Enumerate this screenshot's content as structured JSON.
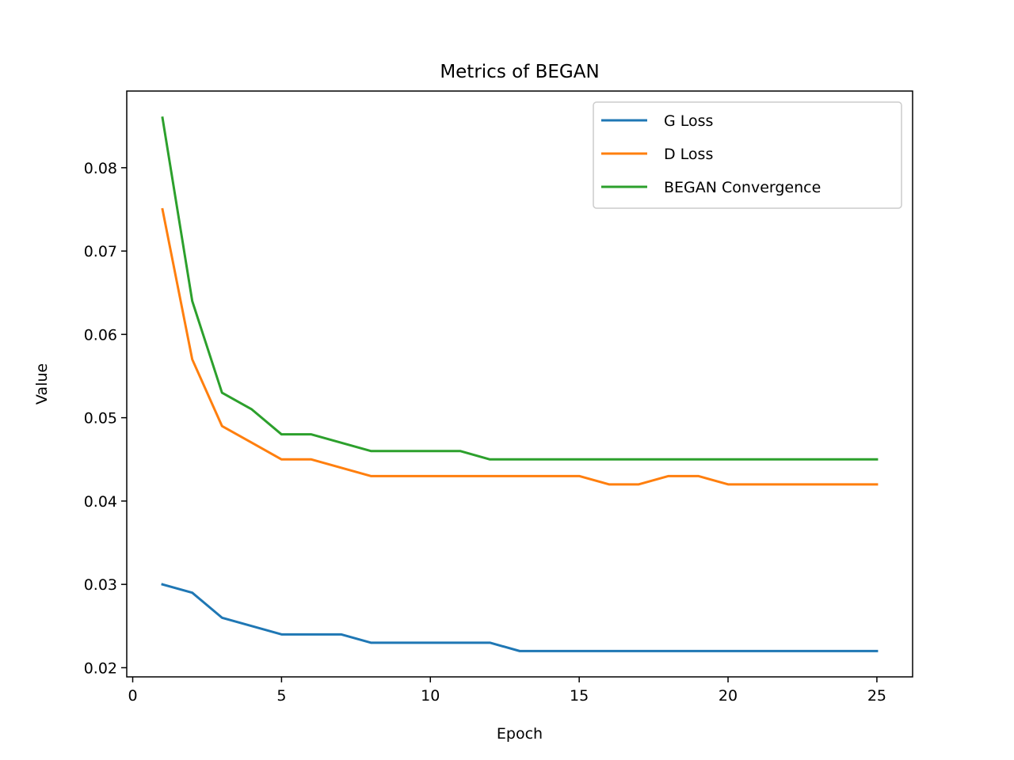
{
  "chart_data": {
    "type": "line",
    "title": "Metrics of BEGAN",
    "xlabel": "Epoch",
    "ylabel": "Value",
    "xlim": [
      -0.2,
      26.2
    ],
    "ylim": [
      0.0189,
      0.0892
    ],
    "xticks": [
      0,
      5,
      10,
      15,
      20,
      25
    ],
    "xtick_labels": [
      "0",
      "5",
      "10",
      "15",
      "20",
      "25"
    ],
    "yticks": [
      0.02,
      0.03,
      0.04,
      0.05,
      0.06,
      0.07,
      0.08
    ],
    "ytick_labels": [
      "0.02",
      "0.03",
      "0.04",
      "0.05",
      "0.06",
      "0.07",
      "0.08"
    ],
    "grid": false,
    "legend_position": "upper right",
    "x": [
      1,
      2,
      3,
      4,
      5,
      6,
      7,
      8,
      9,
      10,
      11,
      12,
      13,
      14,
      15,
      16,
      17,
      18,
      19,
      20,
      21,
      22,
      23,
      24,
      25
    ],
    "series": [
      {
        "name": "G Loss",
        "color": "#1f77b4",
        "values": [
          0.03,
          0.029,
          0.026,
          0.025,
          0.024,
          0.024,
          0.024,
          0.023,
          0.023,
          0.023,
          0.023,
          0.023,
          0.022,
          0.022,
          0.022,
          0.022,
          0.022,
          0.022,
          0.022,
          0.022,
          0.022,
          0.022,
          0.022,
          0.022,
          0.022
        ]
      },
      {
        "name": "D Loss",
        "color": "#ff7f0e",
        "values": [
          0.075,
          0.057,
          0.049,
          0.047,
          0.045,
          0.045,
          0.044,
          0.043,
          0.043,
          0.043,
          0.043,
          0.043,
          0.043,
          0.043,
          0.043,
          0.042,
          0.042,
          0.043,
          0.043,
          0.042,
          0.042,
          0.042,
          0.042,
          0.042,
          0.042
        ]
      },
      {
        "name": "BEGAN Convergence",
        "color": "#2ca02c",
        "values": [
          0.086,
          0.064,
          0.053,
          0.051,
          0.048,
          0.048,
          0.047,
          0.046,
          0.046,
          0.046,
          0.046,
          0.045,
          0.045,
          0.045,
          0.045,
          0.045,
          0.045,
          0.045,
          0.045,
          0.045,
          0.045,
          0.045,
          0.045,
          0.045,
          0.045
        ]
      }
    ]
  }
}
